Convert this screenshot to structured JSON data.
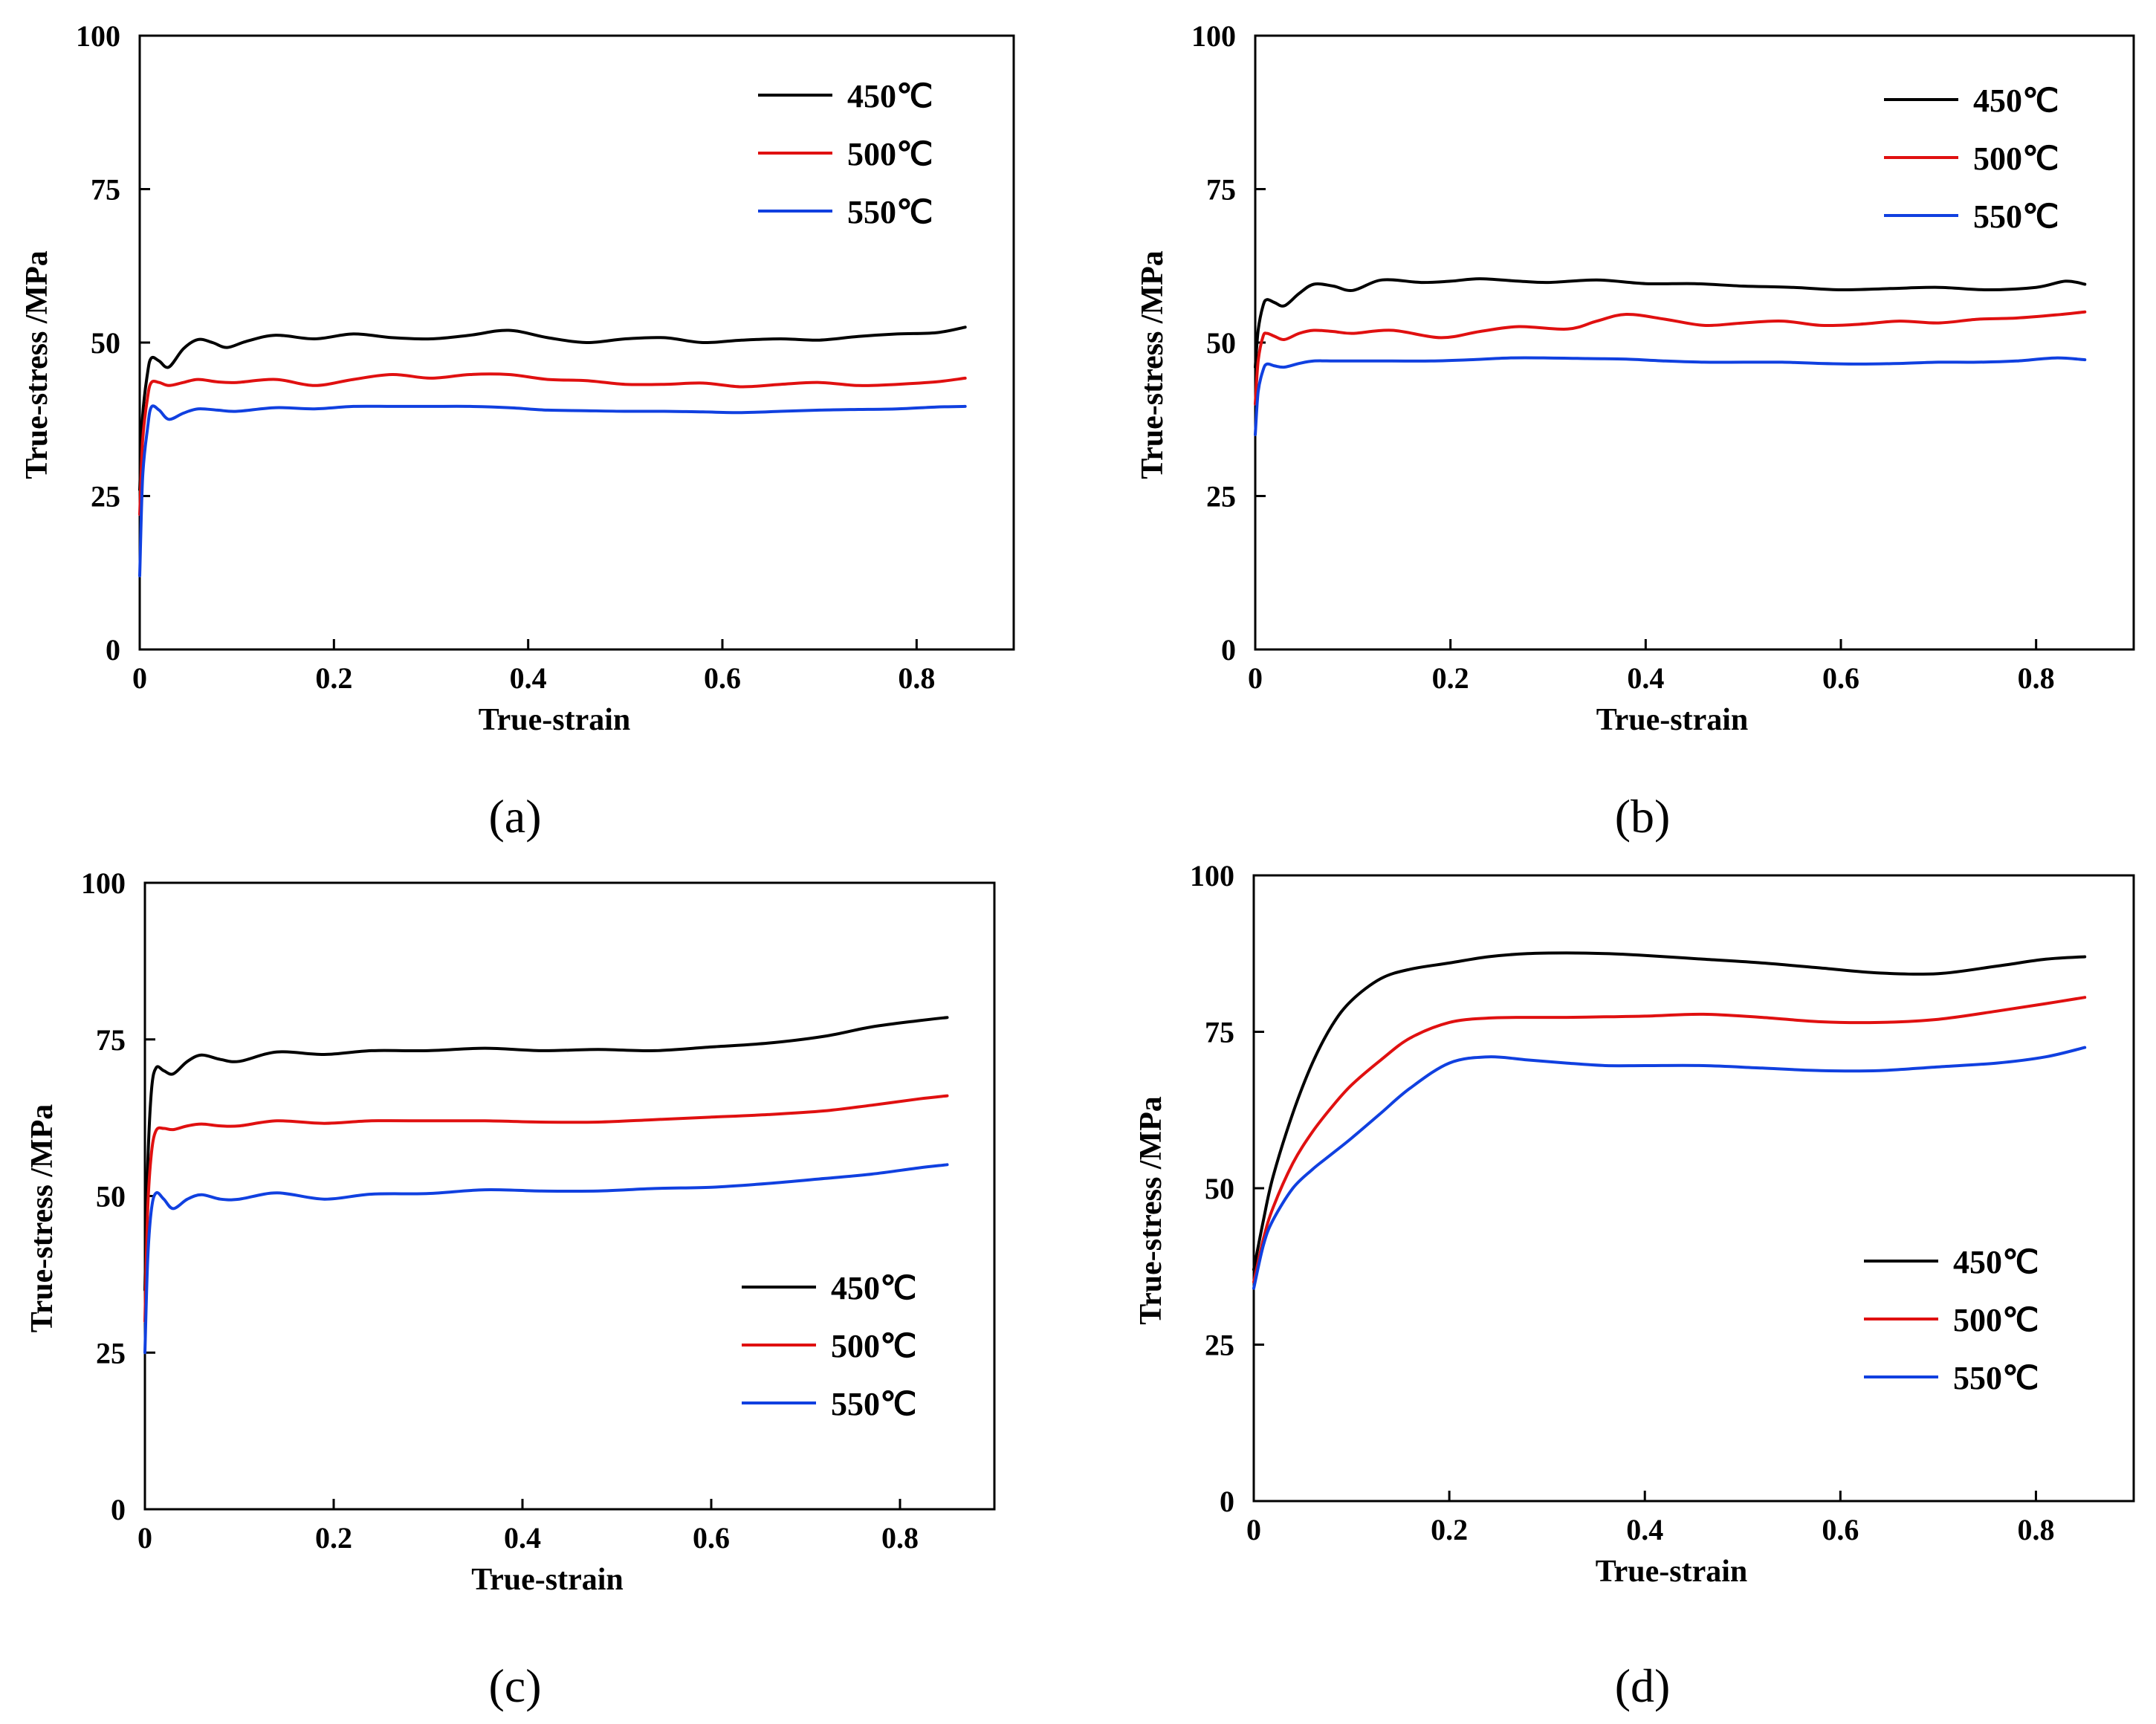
{
  "colors": {
    "t450": "#000000",
    "t500": "#e01010",
    "t550": "#1040e0"
  },
  "chart_data": [
    {
      "id": "a",
      "type": "line",
      "caption": "(a)",
      "xlabel": "True-strain",
      "ylabel": "True-stress /MPa",
      "xlim": [
        0,
        0.9
      ],
      "ylim": [
        0,
        100
      ],
      "xticks": [
        0,
        0.2,
        0.4,
        0.6,
        0.8
      ],
      "xtick_labels": [
        "0",
        "0.2",
        "0.4",
        "0.6",
        "0.8"
      ],
      "yticks": [
        0,
        25,
        50,
        75,
        100
      ],
      "ytick_labels": [
        "0",
        "25",
        "50",
        "75",
        "100"
      ],
      "legend_position": "top-right",
      "series": [
        {
          "name": "450℃",
          "color": "#000000",
          "x": [
            0,
            0.003,
            0.008,
            0.012,
            0.02,
            0.03,
            0.045,
            0.06,
            0.075,
            0.09,
            0.11,
            0.14,
            0.18,
            0.22,
            0.26,
            0.3,
            0.34,
            0.38,
            0.42,
            0.46,
            0.5,
            0.54,
            0.58,
            0.62,
            0.66,
            0.7,
            0.74,
            0.78,
            0.82,
            0.85
          ],
          "y": [
            26,
            38,
            45,
            47.5,
            47,
            46,
            49,
            50.5,
            50,
            49.2,
            50.2,
            51.2,
            50.6,
            51.4,
            50.8,
            50.6,
            51.2,
            52,
            50.8,
            50,
            50.6,
            50.8,
            50,
            50.4,
            50.6,
            50.4,
            51,
            51.4,
            51.6,
            52.5
          ]
        },
        {
          "name": "500℃",
          "color": "#e01010",
          "x": [
            0,
            0.003,
            0.008,
            0.012,
            0.02,
            0.03,
            0.045,
            0.06,
            0.08,
            0.1,
            0.14,
            0.18,
            0.22,
            0.26,
            0.3,
            0.34,
            0.38,
            0.42,
            0.46,
            0.5,
            0.54,
            0.58,
            0.62,
            0.66,
            0.7,
            0.74,
            0.78,
            0.82,
            0.85
          ],
          "y": [
            22,
            34,
            41,
            43.5,
            43.5,
            43,
            43.5,
            44,
            43.6,
            43.5,
            44,
            43,
            44,
            44.8,
            44.2,
            44.8,
            44.8,
            44,
            43.8,
            43.2,
            43.2,
            43.4,
            42.8,
            43.2,
            43.5,
            43,
            43.2,
            43.6,
            44.2
          ]
        },
        {
          "name": "550℃",
          "color": "#1040e0",
          "x": [
            0,
            0.003,
            0.008,
            0.012,
            0.02,
            0.03,
            0.045,
            0.06,
            0.08,
            0.1,
            0.14,
            0.18,
            0.22,
            0.26,
            0.3,
            0.34,
            0.38,
            0.42,
            0.46,
            0.5,
            0.54,
            0.58,
            0.62,
            0.66,
            0.7,
            0.74,
            0.78,
            0.82,
            0.85
          ],
          "y": [
            12,
            28,
            36,
            39.5,
            39,
            37.5,
            38.5,
            39.2,
            39,
            38.8,
            39.4,
            39.2,
            39.6,
            39.6,
            39.6,
            39.6,
            39.4,
            39,
            38.9,
            38.8,
            38.8,
            38.7,
            38.6,
            38.8,
            39,
            39.1,
            39.2,
            39.5,
            39.6
          ]
        }
      ]
    },
    {
      "id": "b",
      "type": "line",
      "caption": "(b)",
      "xlabel": "True-strain",
      "ylabel": "True-stress /MPa",
      "xlim": [
        0,
        0.9
      ],
      "ylim": [
        0,
        100
      ],
      "xticks": [
        0,
        0.2,
        0.4,
        0.6,
        0.8
      ],
      "xtick_labels": [
        "0",
        "0.2",
        "0.4",
        "0.6",
        "0.8"
      ],
      "yticks": [
        0,
        25,
        50,
        75,
        100
      ],
      "ytick_labels": [
        "0",
        "25",
        "50",
        "75",
        "100"
      ],
      "legend_position": "top-right",
      "series": [
        {
          "name": "450℃",
          "color": "#000000",
          "x": [
            0,
            0.003,
            0.008,
            0.012,
            0.02,
            0.03,
            0.045,
            0.06,
            0.08,
            0.1,
            0.13,
            0.17,
            0.2,
            0.23,
            0.27,
            0.3,
            0.35,
            0.4,
            0.45,
            0.5,
            0.55,
            0.6,
            0.65,
            0.7,
            0.75,
            0.8,
            0.83,
            0.85
          ],
          "y": [
            46,
            52,
            56,
            57,
            56.5,
            56,
            58,
            59.5,
            59.2,
            58.5,
            60.2,
            59.8,
            60,
            60.4,
            60,
            59.8,
            60.2,
            59.6,
            59.6,
            59.2,
            59,
            58.6,
            58.8,
            59,
            58.6,
            59,
            60,
            59.5
          ]
        },
        {
          "name": "500℃",
          "color": "#e01010",
          "x": [
            0,
            0.003,
            0.008,
            0.012,
            0.02,
            0.03,
            0.045,
            0.06,
            0.08,
            0.1,
            0.14,
            0.19,
            0.23,
            0.27,
            0.32,
            0.35,
            0.38,
            0.42,
            0.46,
            0.5,
            0.54,
            0.58,
            0.62,
            0.66,
            0.7,
            0.74,
            0.78,
            0.82,
            0.85
          ],
          "y": [
            40,
            47,
            51,
            51.5,
            51,
            50.5,
            51.5,
            52,
            51.8,
            51.5,
            52,
            50.8,
            51.8,
            52.6,
            52.2,
            53.5,
            54.6,
            53.8,
            52.8,
            53.2,
            53.5,
            52.8,
            53,
            53.5,
            53.2,
            53.8,
            54,
            54.5,
            55
          ]
        },
        {
          "name": "550℃",
          "color": "#1040e0",
          "x": [
            0,
            0.003,
            0.008,
            0.012,
            0.02,
            0.03,
            0.045,
            0.06,
            0.08,
            0.1,
            0.14,
            0.18,
            0.22,
            0.26,
            0.3,
            0.34,
            0.38,
            0.42,
            0.46,
            0.5,
            0.54,
            0.58,
            0.62,
            0.66,
            0.7,
            0.74,
            0.78,
            0.82,
            0.85
          ],
          "y": [
            35,
            42,
            45.5,
            46.5,
            46.2,
            46,
            46.6,
            47,
            47,
            47,
            47,
            47,
            47.2,
            47.5,
            47.5,
            47.4,
            47.3,
            47,
            46.8,
            46.8,
            46.8,
            46.6,
            46.5,
            46.6,
            46.8,
            46.8,
            47,
            47.5,
            47.2
          ]
        }
      ]
    },
    {
      "id": "c",
      "type": "line",
      "caption": "(c)",
      "xlabel": "True-strain",
      "ylabel": "True-stress /MPa",
      "xlim": [
        0,
        0.9
      ],
      "ylim": [
        0,
        100
      ],
      "xticks": [
        0,
        0.2,
        0.4,
        0.6,
        0.8
      ],
      "xtick_labels": [
        "0",
        "0.2",
        "0.4",
        "0.6",
        "0.8"
      ],
      "yticks": [
        0,
        25,
        50,
        75,
        100
      ],
      "ytick_labels": [
        "0",
        "25",
        "50",
        "75",
        "100"
      ],
      "legend_position": "bottom-right",
      "series": [
        {
          "name": "450℃",
          "color": "#000000",
          "x": [
            0,
            0.003,
            0.007,
            0.012,
            0.02,
            0.03,
            0.045,
            0.06,
            0.08,
            0.1,
            0.14,
            0.19,
            0.24,
            0.3,
            0.36,
            0.42,
            0.48,
            0.54,
            0.6,
            0.66,
            0.72,
            0.77,
            0.82,
            0.85
          ],
          "y": [
            35,
            55,
            67,
            70.5,
            70,
            69.5,
            71.5,
            72.5,
            71.8,
            71.5,
            73,
            72.6,
            73.2,
            73.2,
            73.6,
            73.2,
            73.4,
            73.2,
            73.8,
            74.4,
            75.5,
            77,
            78,
            78.5
          ]
        },
        {
          "name": "500℃",
          "color": "#e01010",
          "x": [
            0,
            0.003,
            0.007,
            0.012,
            0.02,
            0.03,
            0.045,
            0.06,
            0.08,
            0.1,
            0.14,
            0.19,
            0.24,
            0.3,
            0.36,
            0.42,
            0.48,
            0.54,
            0.6,
            0.66,
            0.72,
            0.77,
            0.82,
            0.85
          ],
          "y": [
            30,
            48,
            57,
            60.5,
            60.8,
            60.6,
            61.2,
            61.5,
            61.2,
            61.2,
            62,
            61.6,
            62,
            62,
            62,
            61.8,
            61.8,
            62.2,
            62.6,
            63,
            63.6,
            64.5,
            65.5,
            66
          ]
        },
        {
          "name": "550℃",
          "color": "#1040e0",
          "x": [
            0,
            0.003,
            0.007,
            0.012,
            0.02,
            0.03,
            0.045,
            0.06,
            0.08,
            0.1,
            0.14,
            0.19,
            0.24,
            0.3,
            0.36,
            0.42,
            0.48,
            0.54,
            0.6,
            0.66,
            0.72,
            0.77,
            0.82,
            0.85
          ],
          "y": [
            25,
            40,
            48,
            50.5,
            49.5,
            48,
            49.5,
            50.2,
            49.5,
            49.5,
            50.5,
            49.5,
            50.3,
            50.4,
            51,
            50.8,
            50.8,
            51.2,
            51.4,
            52,
            52.8,
            53.5,
            54.5,
            55
          ]
        }
      ]
    },
    {
      "id": "d",
      "type": "line",
      "caption": "(d)",
      "xlabel": "True-strain",
      "ylabel": "True-stress /MPa",
      "xlim": [
        0,
        0.9
      ],
      "ylim": [
        0,
        100
      ],
      "xticks": [
        0,
        0.2,
        0.4,
        0.6,
        0.8
      ],
      "xtick_labels": [
        "0",
        "0.2",
        "0.4",
        "0.6",
        "0.8"
      ],
      "yticks": [
        0,
        25,
        50,
        75,
        100
      ],
      "ytick_labels": [
        "0",
        "25",
        "50",
        "75",
        "100"
      ],
      "legend_position": "bottom-right",
      "series": [
        {
          "name": "450℃",
          "color": "#000000",
          "x": [
            0,
            0.01,
            0.02,
            0.04,
            0.06,
            0.08,
            0.1,
            0.13,
            0.16,
            0.2,
            0.24,
            0.28,
            0.32,
            0.36,
            0.4,
            0.46,
            0.52,
            0.58,
            0.64,
            0.7,
            0.76,
            0.81,
            0.85
          ],
          "y": [
            37,
            45,
            52,
            62,
            70,
            76,
            80,
            83.5,
            85,
            86,
            87,
            87.5,
            87.6,
            87.5,
            87.2,
            86.6,
            86,
            85.2,
            84.4,
            84.3,
            85.5,
            86.6,
            87
          ]
        },
        {
          "name": "500℃",
          "color": "#e01010",
          "x": [
            0,
            0.01,
            0.02,
            0.04,
            0.06,
            0.08,
            0.1,
            0.13,
            0.16,
            0.2,
            0.24,
            0.28,
            0.32,
            0.36,
            0.4,
            0.46,
            0.52,
            0.58,
            0.64,
            0.7,
            0.76,
            0.81,
            0.85
          ],
          "y": [
            35,
            42,
            47,
            54,
            59,
            63,
            66.5,
            70.5,
            74,
            76.5,
            77.2,
            77.3,
            77.3,
            77.4,
            77.5,
            77.8,
            77.3,
            76.6,
            76.5,
            77,
            78.3,
            79.5,
            80.5
          ]
        },
        {
          "name": "550℃",
          "color": "#1040e0",
          "x": [
            0,
            0.01,
            0.02,
            0.04,
            0.06,
            0.08,
            0.1,
            0.13,
            0.16,
            0.2,
            0.24,
            0.28,
            0.32,
            0.36,
            0.4,
            0.46,
            0.52,
            0.58,
            0.64,
            0.7,
            0.76,
            0.81,
            0.85
          ],
          "y": [
            34,
            41,
            45,
            50,
            53,
            55.5,
            58,
            62,
            66,
            70,
            71,
            70.5,
            70,
            69.6,
            69.6,
            69.6,
            69.2,
            68.8,
            68.8,
            69.4,
            70,
            71,
            72.5
          ]
        }
      ]
    }
  ]
}
